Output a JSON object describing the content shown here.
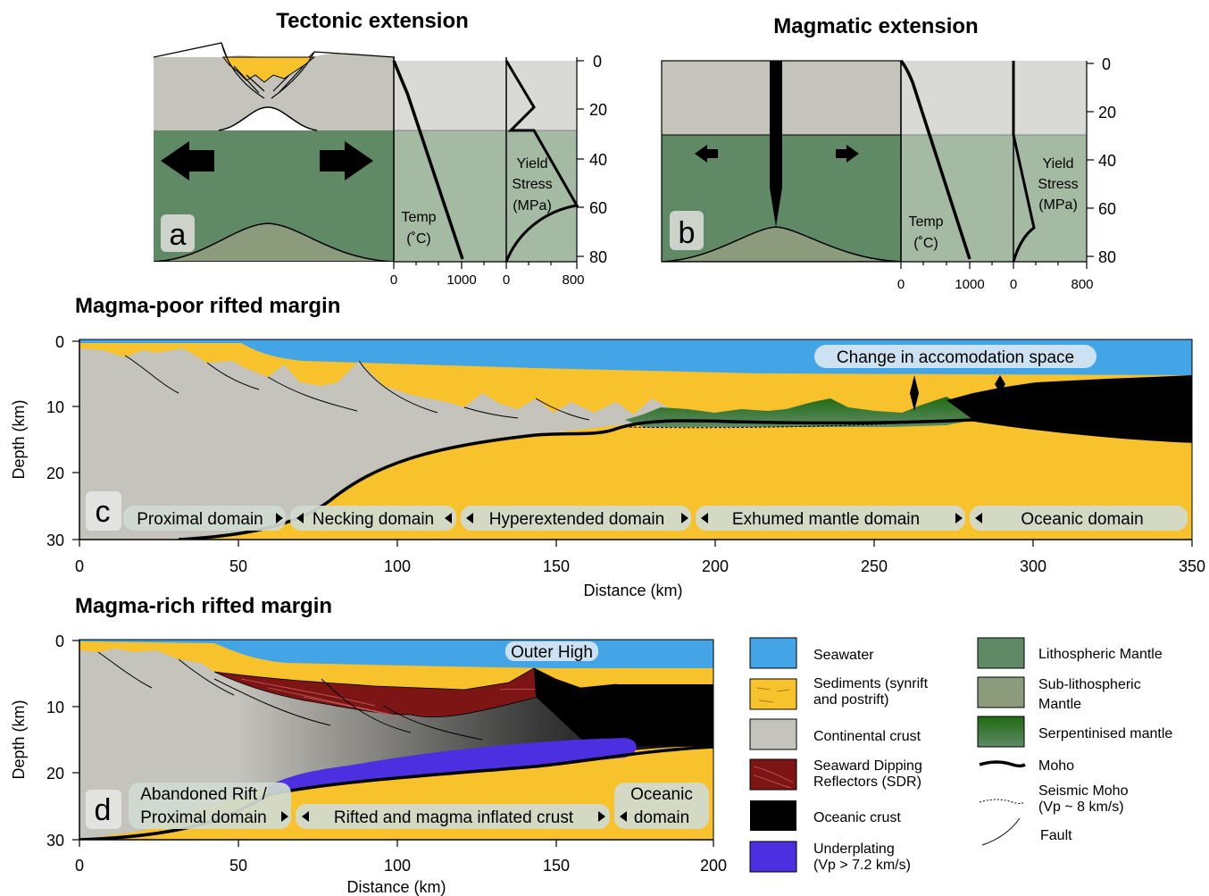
{
  "titles": {
    "a": "Tectonic extension",
    "b": "Magmatic extension",
    "c": "Magma-poor rifted margin",
    "d": "Magma-rich rifted margin"
  },
  "panel_letters": {
    "a": "a",
    "b": "b",
    "c": "c",
    "d": "d"
  },
  "profile_labels": {
    "temp_line1": "Temp",
    "temp_line2": "(˚C)",
    "yield_line1": "Yield",
    "yield_line2": "Stress",
    "yield_line3": "(MPa)"
  },
  "depth_ticks_ab": [
    "0",
    "20",
    "40",
    "60",
    "80"
  ],
  "temp_ticks": [
    "0",
    "1000"
  ],
  "stress_ticks": [
    "0",
    "800"
  ],
  "depth_ticks_cd": [
    "0",
    "10",
    "20",
    "30"
  ],
  "distance_ticks_c": [
    "0",
    "50",
    "100",
    "150",
    "200",
    "250",
    "300",
    "350"
  ],
  "distance_ticks_d": [
    "0",
    "50",
    "100",
    "150",
    "200"
  ],
  "axis_labels": {
    "depth": "Depth (km)",
    "distance": "Distance (km)"
  },
  "domains_c": [
    "Proximal domain",
    "Necking domain",
    "Hyperextended domain",
    "Exhumed mantle domain",
    "Oceanic domain"
  ],
  "domains_d": {
    "abandoned_line1": "Abandoned Rift /",
    "abandoned_line2": "Proximal domain",
    "rifted": "Rifted and magma inflated crust",
    "oceanic_line1": "Oceanic",
    "oceanic_line2": "domain"
  },
  "callouts": {
    "accommodation": "Change in accomodation space",
    "outer_high": "Outer High"
  },
  "legend": {
    "seawater": "Seawater",
    "sediments_1": "Sediments (synrift",
    "sediments_2": "and postrift)",
    "continental": "Continental crust",
    "sdr_1": "Seaward Dipping",
    "sdr_2": "Reflectors (SDR)",
    "oceanic": "Oceanic crust",
    "underplating_1": "Underplating",
    "underplating_2": "(Vp > 7.2 km/s)",
    "lith_mantle": "Lithospheric Mantle",
    "sublith_1": "Sub-lithospheric",
    "sublith_2": "Mantle",
    "serpentinised": "Serpentinised mantle",
    "moho": "Moho",
    "seismic_moho_1": "Seismic Moho",
    "seismic_moho_2": "(Vp ~ 8 km/s)",
    "fault": "Fault"
  },
  "colors": {
    "seawater": "#43a4e6",
    "sediments": "#f8c22c",
    "continental": "#c4c3bc",
    "lith_mantle": "#5f8a65",
    "sublith_mantle": "#8b9b7c",
    "serpentinised": "#2a7a1c",
    "oceanic": "#000000",
    "sdr": "#7d1515",
    "underplating": "#4b2fe0",
    "profile_bg_top": "#d9d9d6",
    "profile_bg_bottom": "#a4baa2"
  }
}
